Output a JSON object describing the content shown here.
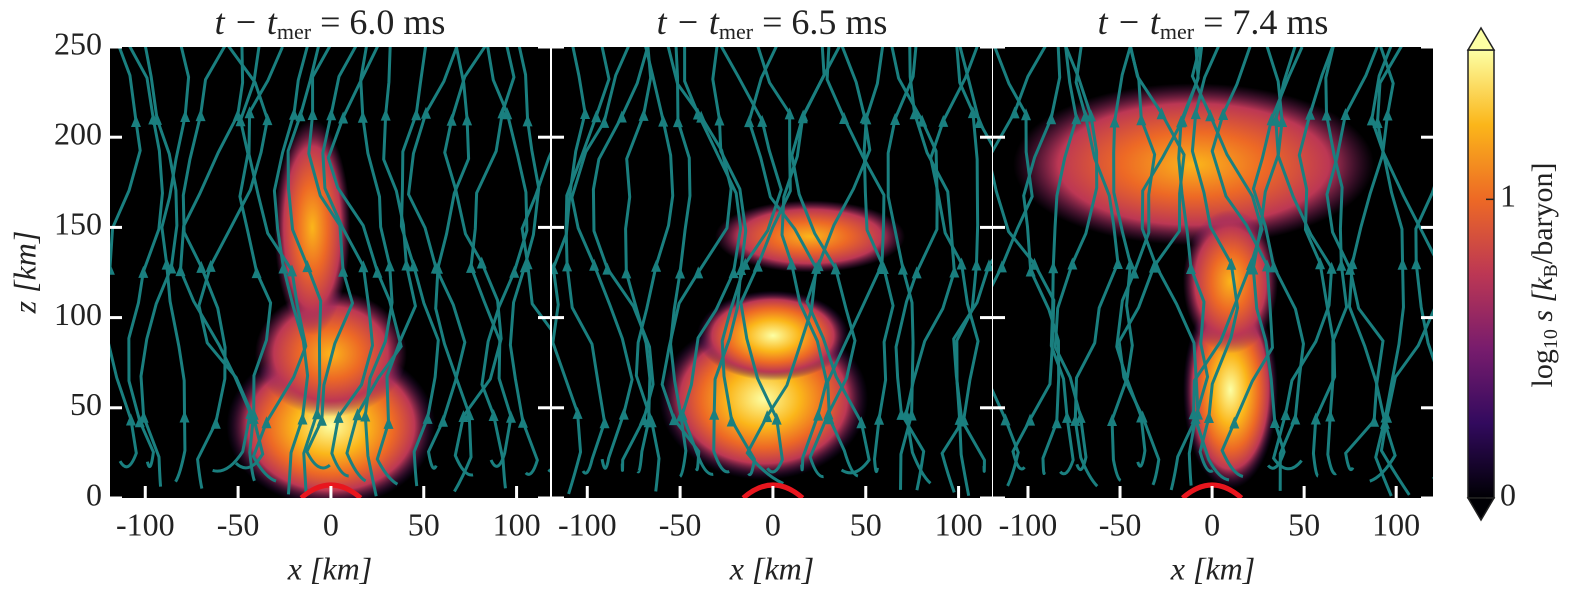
{
  "chart_data": [
    {
      "type": "heatmap",
      "title_parts": [
        "t − t",
        "mer",
        " =  6.0 ms"
      ],
      "xlabel": "x [km]",
      "ylabel": "z [km]",
      "xlim": [
        -119,
        118
      ],
      "xticks": [
        -100,
        -50,
        0,
        50,
        100
      ],
      "ylim": [
        0,
        250
      ],
      "yticks": [
        0,
        50,
        100,
        150,
        200,
        250
      ]
    },
    {
      "type": "heatmap",
      "title_parts": [
        "t − t",
        "mer",
        " =  6.5 ms"
      ],
      "xlabel": "x [km]",
      "xlim": [
        -119,
        118
      ],
      "xticks": [
        -100,
        -50,
        0,
        50,
        100
      ],
      "ylim": [
        0,
        250
      ],
      "yticks": [
        0,
        50,
        100,
        150,
        200,
        250
      ]
    },
    {
      "type": "heatmap",
      "title_parts": [
        "t − t",
        "mer",
        " =  7.4 ms"
      ],
      "xlabel": "x [km]",
      "xlim": [
        -119,
        120
      ],
      "xticks": [
        -100,
        -50,
        0,
        50,
        100
      ],
      "ylim": [
        0,
        250
      ],
      "yticks": [
        0,
        50,
        100,
        150,
        200,
        250
      ]
    },
    {
      "type": "colorbar",
      "label_parts": [
        "log",
        "10",
        " s [k",
        "B",
        "/baryon]"
      ],
      "lim": [
        0,
        1.5
      ],
      "ticks": [
        0,
        1
      ],
      "colors": [
        "#000004",
        "#320a5e",
        "#781c6d",
        "#bc3754",
        "#ed6925",
        "#fbb61a",
        "#fcffa4"
      ]
    }
  ]
}
